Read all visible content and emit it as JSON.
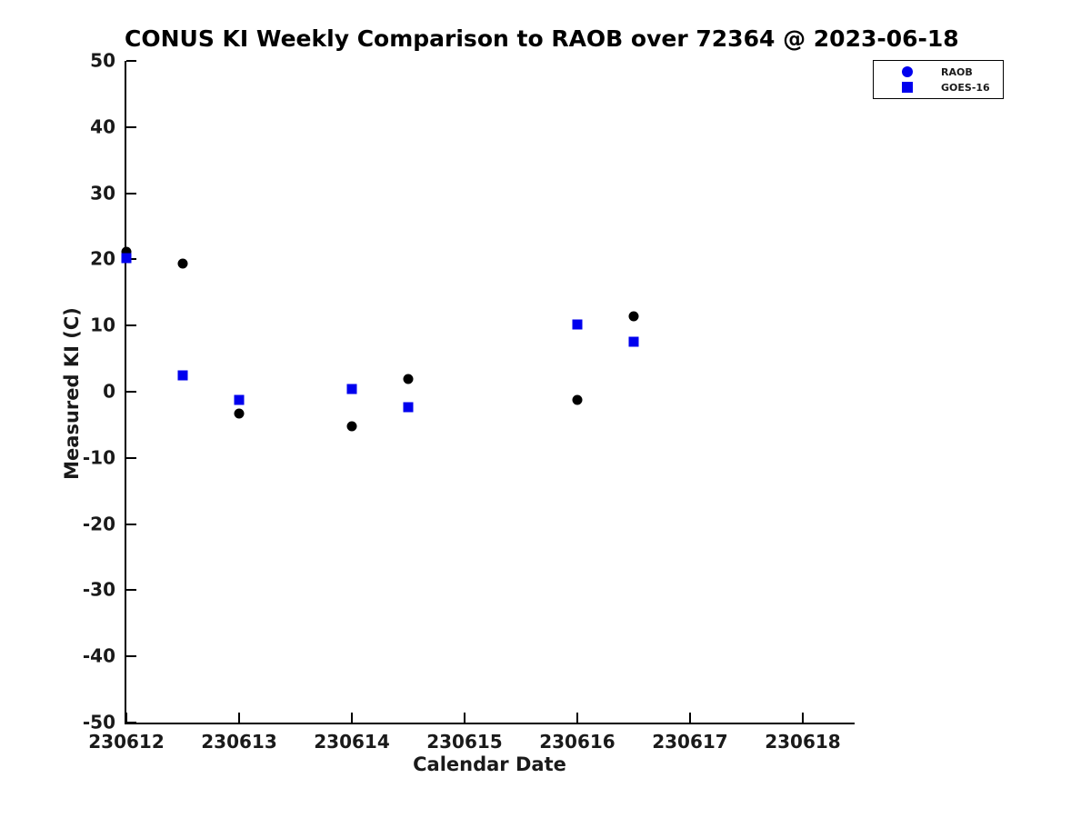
{
  "title": "CONUS KI Weekly Comparison to RAOB over 72364 @ 2023-06-18",
  "colors": {
    "background": "#ffffff",
    "axis_line": "#000000",
    "tick_label": "#1a1a1a",
    "raob_marker": "#000000",
    "goes16_marker": "#0000ee",
    "legend_marker_blue": "#0000ee"
  },
  "chart_data": {
    "type": "scatter",
    "title": "CONUS KI Weekly Comparison to RAOB over 72364 @ 2023-06-18",
    "xlabel": "Calendar Date",
    "ylabel": "Measured KI (C)",
    "xlim": [
      230612,
      230618.46
    ],
    "ylim": [
      -50,
      50
    ],
    "x_ticks": [
      230612,
      230613,
      230614,
      230615,
      230616,
      230617,
      230618
    ],
    "y_ticks": [
      50,
      40,
      30,
      20,
      10,
      0,
      -10,
      -20,
      -30,
      -40,
      -50
    ],
    "grid": false,
    "legend": {
      "position": "top-right",
      "border": true
    },
    "series": [
      {
        "name": "RAOB",
        "marker": "circle",
        "color": "#000000",
        "legend_color": "#0000ee",
        "points": [
          [
            230612.0,
            21.1
          ],
          [
            230612.5,
            19.3
          ],
          [
            230613.0,
            -3.3
          ],
          [
            230614.0,
            -5.2
          ],
          [
            230614.5,
            1.9
          ],
          [
            230616.0,
            -1.3
          ],
          [
            230616.5,
            11.4
          ]
        ]
      },
      {
        "name": "GOES-16",
        "marker": "square",
        "color": "#0000ee",
        "legend_color": "#0000ee",
        "points": [
          [
            230612.0,
            20.2
          ],
          [
            230612.5,
            2.5
          ],
          [
            230613.0,
            -1.3
          ],
          [
            230614.0,
            0.4
          ],
          [
            230614.5,
            -2.4
          ],
          [
            230616.0,
            10.1
          ],
          [
            230616.5,
            7.6
          ]
        ]
      }
    ]
  }
}
